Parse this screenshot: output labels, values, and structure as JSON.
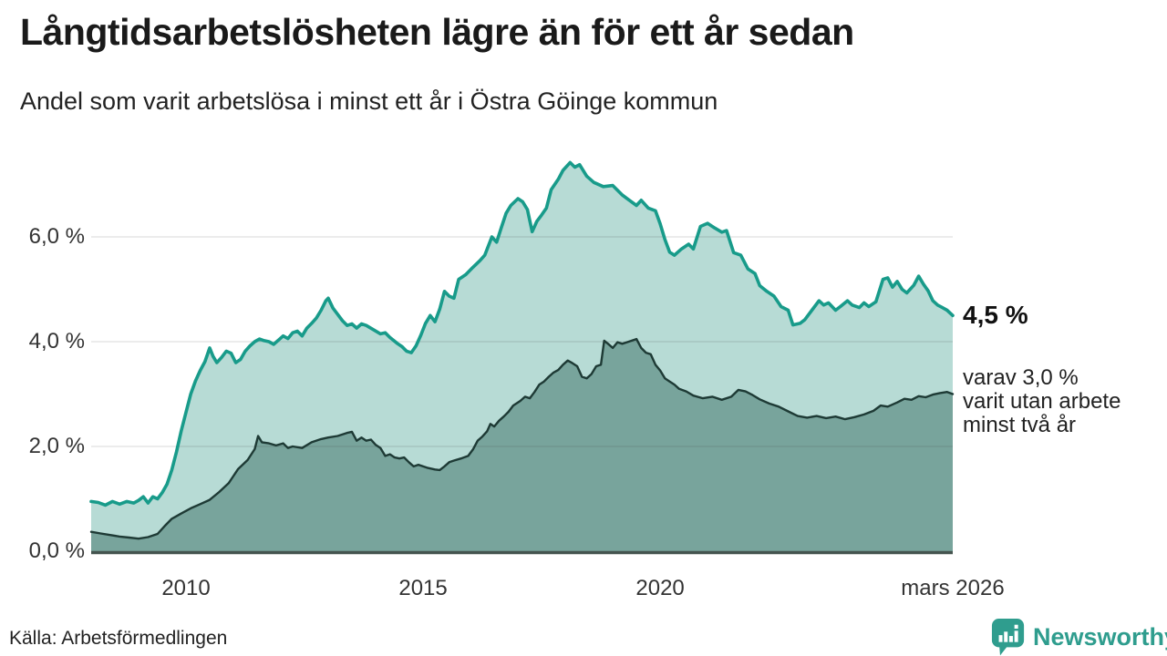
{
  "header": {
    "title": "Långtidsarbetslösheten lägre än för ett år sedan",
    "subtitle": "Andel som varit arbetslösa i minst ett år i Östra Göinge kommun"
  },
  "annotation": {
    "value_label": "4,5 %",
    "detail": "varav 3,0 %\nvarit utan arbete\nminst två år"
  },
  "footer": {
    "source": "Källa: Arbetsförmedlingen",
    "logo_text": "Newsworthy"
  },
  "chart_data": {
    "type": "area",
    "title": "Långtidsarbetslösheten lägre än för ett år sedan",
    "subtitle": "Andel som varit arbetslösa i minst ett år i Östra Göinge kommun",
    "x_domain": [
      2008.0,
      2026.17
    ],
    "ylim": [
      0,
      7.6
    ],
    "grid": true,
    "legend": "none",
    "colors": {
      "line_1yr": "#189b8a",
      "fill_1yr": "#b7dbd5",
      "line_2yr": "#1e3a35",
      "fill_2yr": "#78a49c",
      "baseline": "#45544f",
      "gridline": "#dcdcdc",
      "logo_teal": "#2f9d8e"
    },
    "y_ticks": [
      {
        "value": 0,
        "label": "0,0 %"
      },
      {
        "value": 2,
        "label": "2,0 %"
      },
      {
        "value": 4,
        "label": "4,0 %"
      },
      {
        "value": 6,
        "label": "6,0 %"
      }
    ],
    "x_ticks": [
      {
        "value": 2010,
        "label": "2010"
      },
      {
        "value": 2015,
        "label": "2015"
      },
      {
        "value": 2020,
        "label": "2020"
      },
      {
        "value": 2026.17,
        "label": "mars 2026"
      }
    ],
    "series": [
      {
        "name": "arbetslösa minst ett år",
        "end_label": "4,5 %",
        "points": [
          [
            2008.0,
            0.95
          ],
          [
            2008.15,
            0.93
          ],
          [
            2008.3,
            0.88
          ],
          [
            2008.45,
            0.95
          ],
          [
            2008.6,
            0.9
          ],
          [
            2008.75,
            0.95
          ],
          [
            2008.9,
            0.92
          ],
          [
            2009.0,
            0.97
          ],
          [
            2009.1,
            1.04
          ],
          [
            2009.2,
            0.92
          ],
          [
            2009.3,
            1.04
          ],
          [
            2009.4,
            1.0
          ],
          [
            2009.5,
            1.12
          ],
          [
            2009.6,
            1.28
          ],
          [
            2009.7,
            1.55
          ],
          [
            2009.8,
            1.9
          ],
          [
            2009.9,
            2.3
          ],
          [
            2010.0,
            2.65
          ],
          [
            2010.1,
            3.0
          ],
          [
            2010.2,
            3.25
          ],
          [
            2010.3,
            3.45
          ],
          [
            2010.4,
            3.62
          ],
          [
            2010.5,
            3.88
          ],
          [
            2010.57,
            3.72
          ],
          [
            2010.65,
            3.6
          ],
          [
            2010.75,
            3.7
          ],
          [
            2010.85,
            3.82
          ],
          [
            2010.95,
            3.78
          ],
          [
            2011.05,
            3.6
          ],
          [
            2011.15,
            3.66
          ],
          [
            2011.25,
            3.82
          ],
          [
            2011.35,
            3.92
          ],
          [
            2011.45,
            4.0
          ],
          [
            2011.55,
            4.05
          ],
          [
            2011.65,
            4.02
          ],
          [
            2011.75,
            4.0
          ],
          [
            2011.85,
            3.95
          ],
          [
            2011.95,
            4.03
          ],
          [
            2012.05,
            4.11
          ],
          [
            2012.15,
            4.06
          ],
          [
            2012.25,
            4.17
          ],
          [
            2012.35,
            4.2
          ],
          [
            2012.45,
            4.11
          ],
          [
            2012.55,
            4.26
          ],
          [
            2012.65,
            4.35
          ],
          [
            2012.75,
            4.45
          ],
          [
            2012.85,
            4.6
          ],
          [
            2012.95,
            4.78
          ],
          [
            2013.0,
            4.83
          ],
          [
            2013.1,
            4.64
          ],
          [
            2013.2,
            4.52
          ],
          [
            2013.3,
            4.4
          ],
          [
            2013.4,
            4.31
          ],
          [
            2013.5,
            4.34
          ],
          [
            2013.6,
            4.26
          ],
          [
            2013.7,
            4.34
          ],
          [
            2013.8,
            4.31
          ],
          [
            2013.95,
            4.23
          ],
          [
            2014.1,
            4.15
          ],
          [
            2014.2,
            4.17
          ],
          [
            2014.3,
            4.08
          ],
          [
            2014.45,
            3.97
          ],
          [
            2014.55,
            3.91
          ],
          [
            2014.65,
            3.82
          ],
          [
            2014.75,
            3.79
          ],
          [
            2014.85,
            3.92
          ],
          [
            2014.95,
            4.12
          ],
          [
            2015.05,
            4.35
          ],
          [
            2015.15,
            4.5
          ],
          [
            2015.25,
            4.38
          ],
          [
            2015.35,
            4.62
          ],
          [
            2015.45,
            4.96
          ],
          [
            2015.55,
            4.87
          ],
          [
            2015.65,
            4.83
          ],
          [
            2015.75,
            5.19
          ],
          [
            2015.9,
            5.28
          ],
          [
            2016.05,
            5.42
          ],
          [
            2016.2,
            5.55
          ],
          [
            2016.3,
            5.65
          ],
          [
            2016.45,
            6.0
          ],
          [
            2016.55,
            5.9
          ],
          [
            2016.65,
            6.18
          ],
          [
            2016.75,
            6.45
          ],
          [
            2016.85,
            6.6
          ],
          [
            2017.0,
            6.73
          ],
          [
            2017.1,
            6.67
          ],
          [
            2017.2,
            6.52
          ],
          [
            2017.3,
            6.1
          ],
          [
            2017.4,
            6.3
          ],
          [
            2017.5,
            6.42
          ],
          [
            2017.6,
            6.55
          ],
          [
            2017.7,
            6.9
          ],
          [
            2017.85,
            7.1
          ],
          [
            2017.95,
            7.27
          ],
          [
            2018.1,
            7.42
          ],
          [
            2018.2,
            7.33
          ],
          [
            2018.3,
            7.38
          ],
          [
            2018.45,
            7.16
          ],
          [
            2018.6,
            7.04
          ],
          [
            2018.8,
            6.96
          ],
          [
            2019.0,
            6.98
          ],
          [
            2019.2,
            6.8
          ],
          [
            2019.35,
            6.7
          ],
          [
            2019.5,
            6.6
          ],
          [
            2019.6,
            6.7
          ],
          [
            2019.75,
            6.55
          ],
          [
            2019.9,
            6.5
          ],
          [
            2020.0,
            6.25
          ],
          [
            2020.1,
            5.95
          ],
          [
            2020.2,
            5.71
          ],
          [
            2020.3,
            5.65
          ],
          [
            2020.45,
            5.77
          ],
          [
            2020.6,
            5.86
          ],
          [
            2020.7,
            5.77
          ],
          [
            2020.85,
            6.2
          ],
          [
            2021.0,
            6.26
          ],
          [
            2021.15,
            6.17
          ],
          [
            2021.3,
            6.09
          ],
          [
            2021.4,
            6.12
          ],
          [
            2021.55,
            5.7
          ],
          [
            2021.7,
            5.65
          ],
          [
            2021.85,
            5.39
          ],
          [
            2022.0,
            5.3
          ],
          [
            2022.1,
            5.07
          ],
          [
            2022.25,
            4.96
          ],
          [
            2022.4,
            4.87
          ],
          [
            2022.55,
            4.67
          ],
          [
            2022.7,
            4.6
          ],
          [
            2022.8,
            4.32
          ],
          [
            2022.95,
            4.35
          ],
          [
            2023.05,
            4.42
          ],
          [
            2023.2,
            4.6
          ],
          [
            2023.35,
            4.78
          ],
          [
            2023.45,
            4.7
          ],
          [
            2023.55,
            4.74
          ],
          [
            2023.7,
            4.6
          ],
          [
            2023.8,
            4.67
          ],
          [
            2023.95,
            4.78
          ],
          [
            2024.05,
            4.7
          ],
          [
            2024.2,
            4.65
          ],
          [
            2024.3,
            4.74
          ],
          [
            2024.4,
            4.67
          ],
          [
            2024.55,
            4.76
          ],
          [
            2024.7,
            5.19
          ],
          [
            2024.8,
            5.22
          ],
          [
            2024.9,
            5.04
          ],
          [
            2025.0,
            5.15
          ],
          [
            2025.1,
            5.0
          ],
          [
            2025.2,
            4.93
          ],
          [
            2025.35,
            5.08
          ],
          [
            2025.45,
            5.25
          ],
          [
            2025.55,
            5.1
          ],
          [
            2025.65,
            4.97
          ],
          [
            2025.75,
            4.78
          ],
          [
            2025.85,
            4.7
          ],
          [
            2025.95,
            4.65
          ],
          [
            2026.05,
            4.6
          ],
          [
            2026.17,
            4.5
          ]
        ]
      },
      {
        "name": "varit utan arbete minst två år",
        "end_label": "3,0 %",
        "points": [
          [
            2008.0,
            0.37
          ],
          [
            2008.2,
            0.34
          ],
          [
            2008.4,
            0.31
          ],
          [
            2008.6,
            0.28
          ],
          [
            2008.8,
            0.26
          ],
          [
            2009.0,
            0.24
          ],
          [
            2009.2,
            0.27
          ],
          [
            2009.4,
            0.33
          ],
          [
            2009.55,
            0.48
          ],
          [
            2009.7,
            0.62
          ],
          [
            2009.9,
            0.72
          ],
          [
            2010.1,
            0.82
          ],
          [
            2010.3,
            0.9
          ],
          [
            2010.5,
            0.98
          ],
          [
            2010.7,
            1.13
          ],
          [
            2010.9,
            1.3
          ],
          [
            2011.1,
            1.57
          ],
          [
            2011.3,
            1.74
          ],
          [
            2011.45,
            1.95
          ],
          [
            2011.52,
            2.2
          ],
          [
            2011.6,
            2.08
          ],
          [
            2011.75,
            2.06
          ],
          [
            2011.9,
            2.02
          ],
          [
            2012.05,
            2.06
          ],
          [
            2012.15,
            1.97
          ],
          [
            2012.25,
            2.0
          ],
          [
            2012.45,
            1.97
          ],
          [
            2012.65,
            2.08
          ],
          [
            2012.85,
            2.14
          ],
          [
            2013.0,
            2.17
          ],
          [
            2013.2,
            2.2
          ],
          [
            2013.4,
            2.26
          ],
          [
            2013.5,
            2.28
          ],
          [
            2013.6,
            2.11
          ],
          [
            2013.7,
            2.17
          ],
          [
            2013.8,
            2.11
          ],
          [
            2013.9,
            2.13
          ],
          [
            2014.0,
            2.03
          ],
          [
            2014.1,
            1.97
          ],
          [
            2014.2,
            1.82
          ],
          [
            2014.3,
            1.85
          ],
          [
            2014.4,
            1.79
          ],
          [
            2014.5,
            1.77
          ],
          [
            2014.6,
            1.79
          ],
          [
            2014.7,
            1.7
          ],
          [
            2014.8,
            1.62
          ],
          [
            2014.9,
            1.65
          ],
          [
            2015.0,
            1.62
          ],
          [
            2015.1,
            1.59
          ],
          [
            2015.25,
            1.56
          ],
          [
            2015.35,
            1.55
          ],
          [
            2015.45,
            1.62
          ],
          [
            2015.55,
            1.7
          ],
          [
            2015.65,
            1.73
          ],
          [
            2015.8,
            1.77
          ],
          [
            2015.95,
            1.82
          ],
          [
            2016.05,
            1.94
          ],
          [
            2016.15,
            2.11
          ],
          [
            2016.25,
            2.19
          ],
          [
            2016.35,
            2.29
          ],
          [
            2016.42,
            2.43
          ],
          [
            2016.5,
            2.38
          ],
          [
            2016.6,
            2.49
          ],
          [
            2016.7,
            2.57
          ],
          [
            2016.8,
            2.66
          ],
          [
            2016.9,
            2.78
          ],
          [
            2017.05,
            2.87
          ],
          [
            2017.15,
            2.95
          ],
          [
            2017.25,
            2.92
          ],
          [
            2017.35,
            3.04
          ],
          [
            2017.45,
            3.18
          ],
          [
            2017.55,
            3.24
          ],
          [
            2017.65,
            3.33
          ],
          [
            2017.75,
            3.41
          ],
          [
            2017.85,
            3.46
          ],
          [
            2017.95,
            3.56
          ],
          [
            2018.05,
            3.64
          ],
          [
            2018.15,
            3.59
          ],
          [
            2018.25,
            3.53
          ],
          [
            2018.35,
            3.33
          ],
          [
            2018.45,
            3.3
          ],
          [
            2018.55,
            3.38
          ],
          [
            2018.65,
            3.53
          ],
          [
            2018.75,
            3.56
          ],
          [
            2018.82,
            4.02
          ],
          [
            2018.9,
            3.96
          ],
          [
            2019.0,
            3.88
          ],
          [
            2019.1,
            3.99
          ],
          [
            2019.2,
            3.96
          ],
          [
            2019.3,
            3.99
          ],
          [
            2019.4,
            4.02
          ],
          [
            2019.5,
            4.05
          ],
          [
            2019.6,
            3.88
          ],
          [
            2019.7,
            3.79
          ],
          [
            2019.8,
            3.76
          ],
          [
            2019.9,
            3.56
          ],
          [
            2020.0,
            3.45
          ],
          [
            2020.1,
            3.3
          ],
          [
            2020.2,
            3.24
          ],
          [
            2020.3,
            3.18
          ],
          [
            2020.4,
            3.1
          ],
          [
            2020.55,
            3.05
          ],
          [
            2020.7,
            2.97
          ],
          [
            2020.9,
            2.92
          ],
          [
            2021.1,
            2.95
          ],
          [
            2021.3,
            2.89
          ],
          [
            2021.5,
            2.95
          ],
          [
            2021.65,
            3.08
          ],
          [
            2021.8,
            3.05
          ],
          [
            2021.95,
            2.98
          ],
          [
            2022.1,
            2.9
          ],
          [
            2022.3,
            2.82
          ],
          [
            2022.5,
            2.76
          ],
          [
            2022.7,
            2.67
          ],
          [
            2022.9,
            2.58
          ],
          [
            2023.1,
            2.55
          ],
          [
            2023.3,
            2.58
          ],
          [
            2023.5,
            2.54
          ],
          [
            2023.7,
            2.57
          ],
          [
            2023.9,
            2.52
          ],
          [
            2024.1,
            2.56
          ],
          [
            2024.3,
            2.61
          ],
          [
            2024.5,
            2.68
          ],
          [
            2024.65,
            2.78
          ],
          [
            2024.8,
            2.76
          ],
          [
            2025.0,
            2.84
          ],
          [
            2025.15,
            2.91
          ],
          [
            2025.3,
            2.89
          ],
          [
            2025.45,
            2.96
          ],
          [
            2025.6,
            2.94
          ],
          [
            2025.75,
            2.99
          ],
          [
            2025.9,
            3.02
          ],
          [
            2026.05,
            3.04
          ],
          [
            2026.17,
            3.0
          ]
        ]
      }
    ]
  }
}
